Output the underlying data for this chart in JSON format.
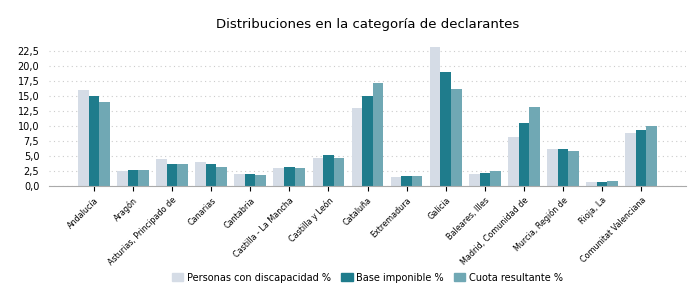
{
  "title": "Distribuciones en la categoría de declarantes",
  "categories": [
    "Andalucía",
    "Aragón",
    "Asturias, Principado de",
    "Canarias",
    "Cantabria",
    "Castilla - La Mancha",
    "Castilla y León",
    "Cataluña",
    "Extremadura",
    "Galicia",
    "Baleares, Illes",
    "Madrid, Comunidad de",
    "Murcia, Región de",
    "Rioja, La",
    "Comunitat Valenciana"
  ],
  "series": {
    "Personas con discapacidad %": [
      16.0,
      2.5,
      4.5,
      4.0,
      2.0,
      3.0,
      4.7,
      13.0,
      1.5,
      23.2,
      2.0,
      8.2,
      6.2,
      0.7,
      8.8
    ],
    "Base imponible %": [
      15.0,
      2.6,
      3.7,
      3.7,
      2.0,
      3.1,
      5.1,
      15.0,
      1.6,
      19.0,
      2.2,
      10.5,
      6.2,
      0.7,
      9.4
    ],
    "Cuota resultante %": [
      14.0,
      2.6,
      3.6,
      3.2,
      1.9,
      3.0,
      4.6,
      17.2,
      1.7,
      16.2,
      2.5,
      13.2,
      5.8,
      0.8,
      10.0
    ]
  },
  "colors": {
    "Personas con discapacidad %": "#d5dce6",
    "Base imponible %": "#1f7c8c",
    "Cuota resultante %": "#70a8b4"
  },
  "legend_labels": [
    "Personas con discapacidad %",
    "Base imponible %",
    "Cuota resultante %"
  ],
  "ylim": [
    0,
    25
  ],
  "yticks": [
    0,
    2.5,
    5.0,
    7.5,
    10.0,
    12.5,
    15.0,
    17.5,
    20.0,
    22.5
  ],
  "bar_width": 0.27,
  "figsize": [
    7.0,
    3.0
  ],
  "dpi": 100,
  "grid_color": "#cccccc"
}
